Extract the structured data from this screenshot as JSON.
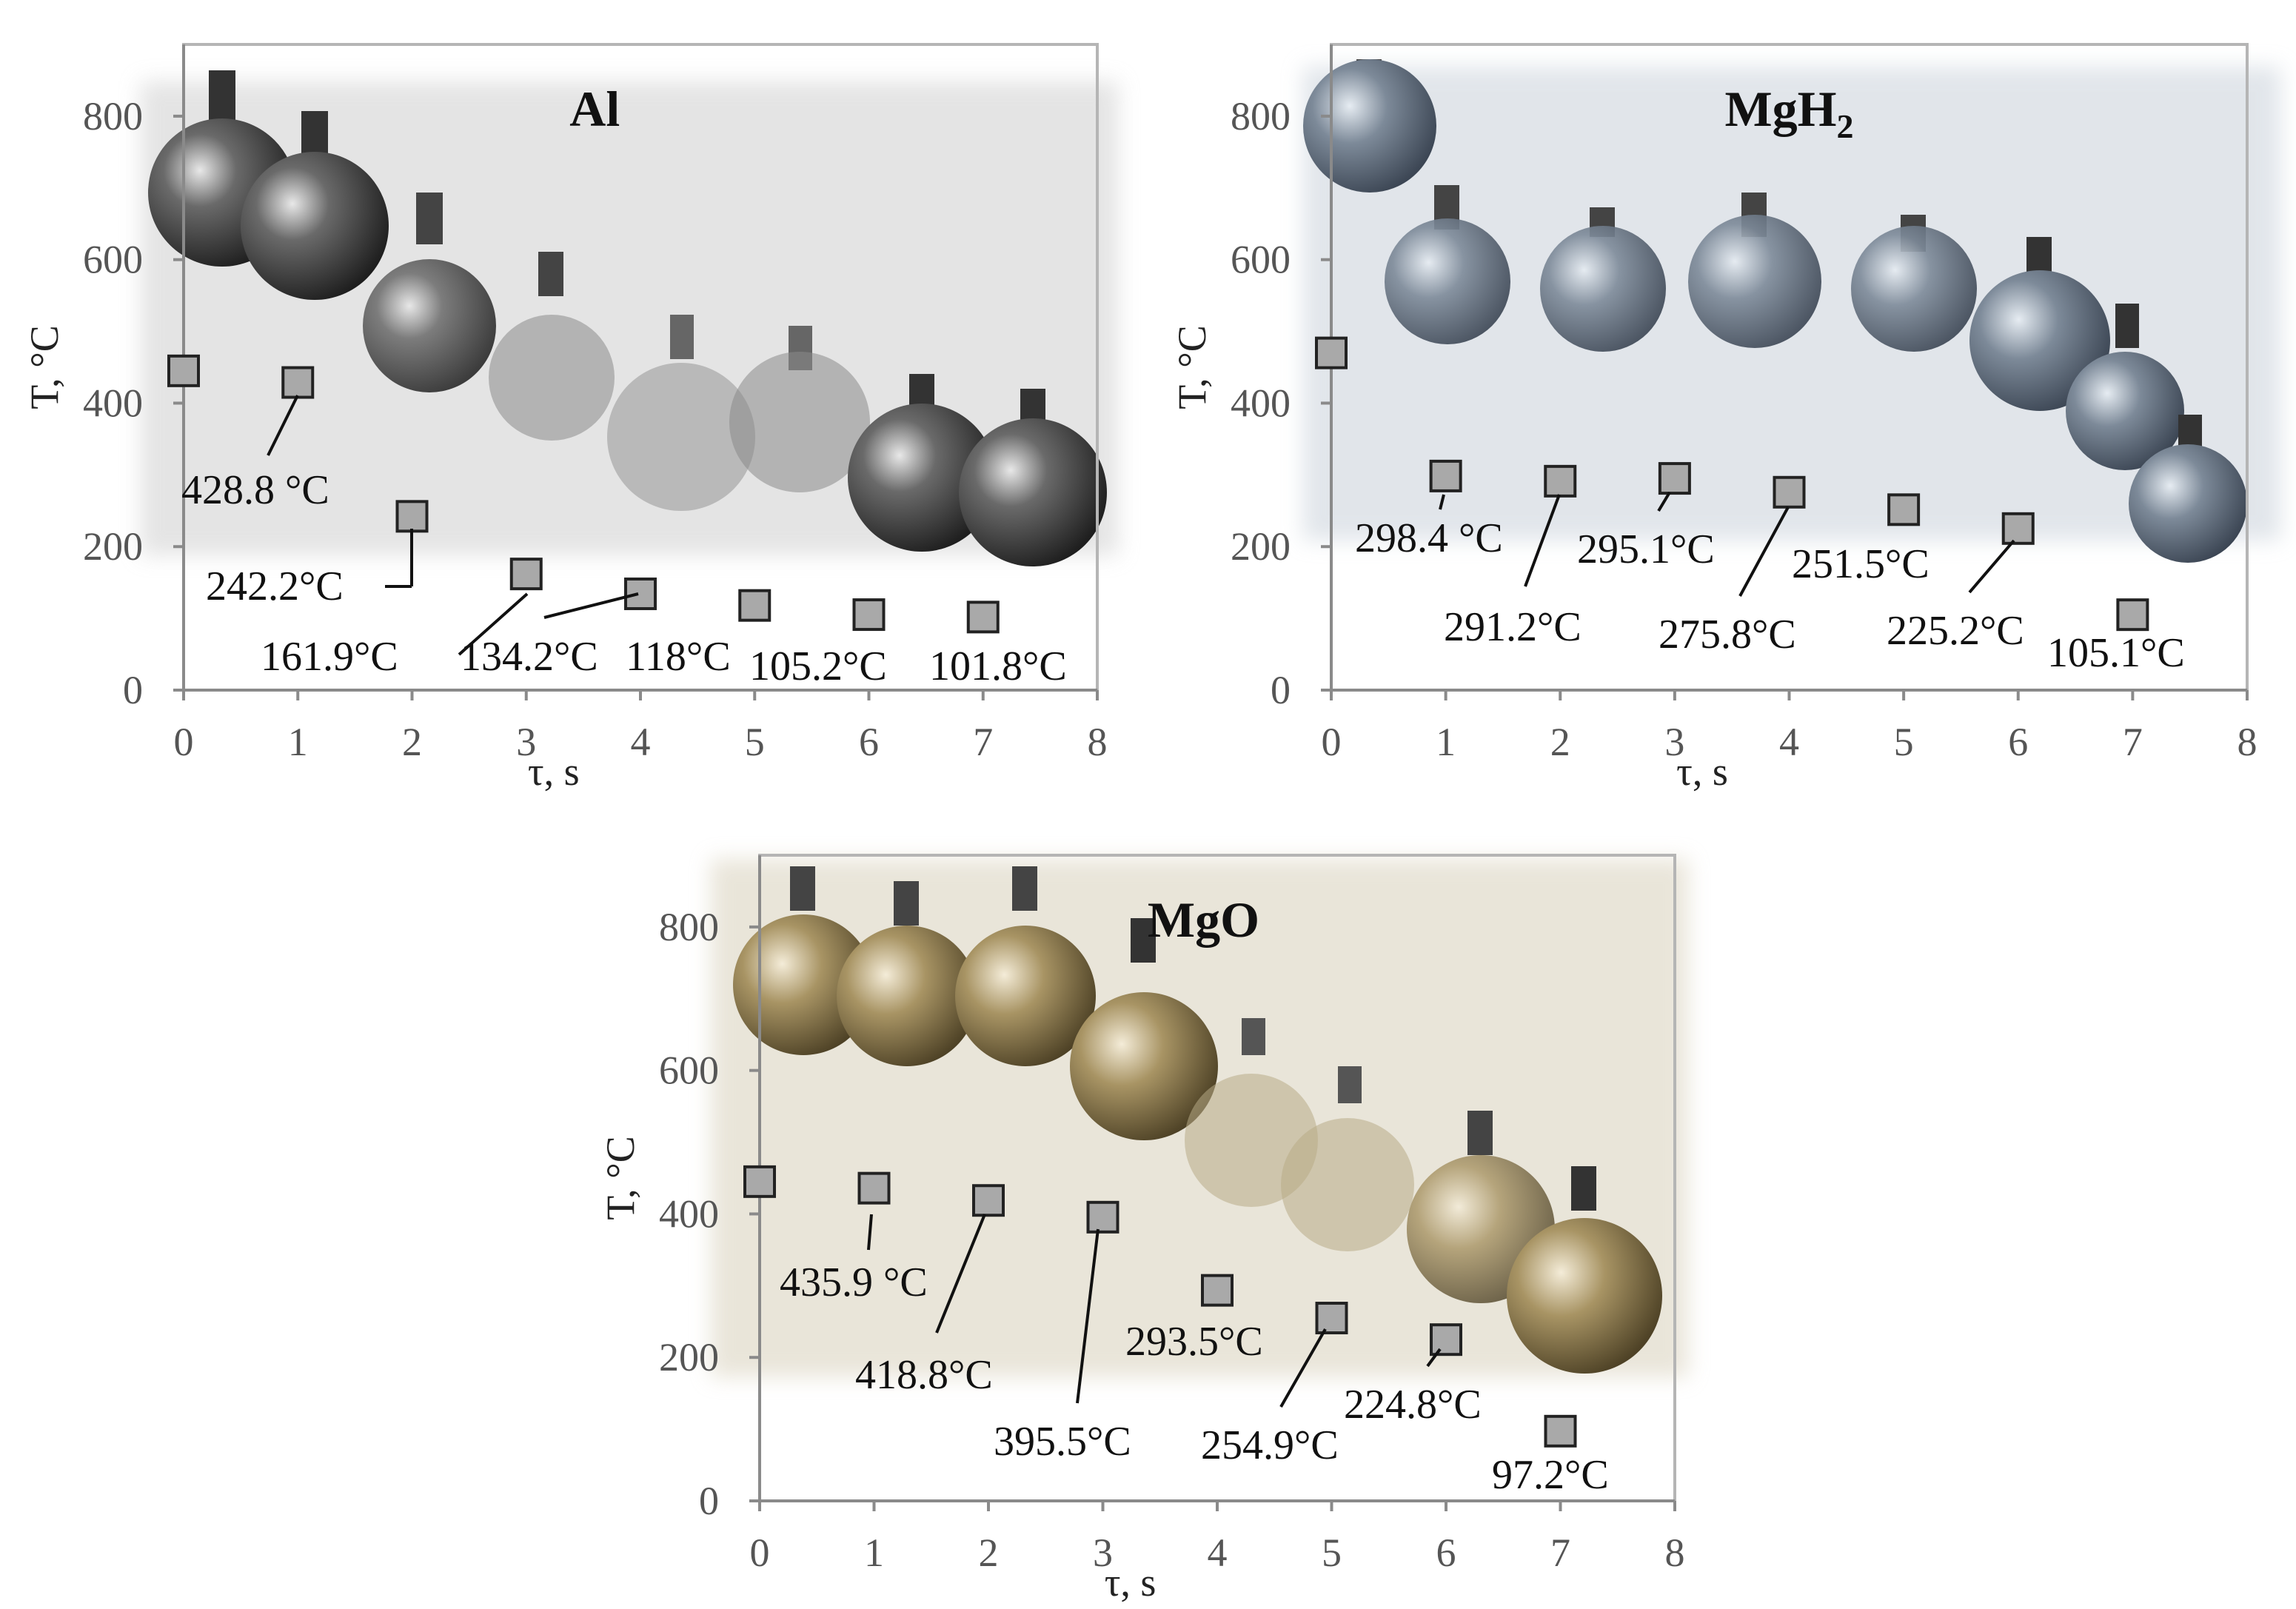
{
  "colors": {
    "marker_fill": "#a9a9a9",
    "marker_stroke": "#222222",
    "Al_sphere": "#3a3a3a",
    "MgH2_sphere": "#6f7c8c",
    "MgO_sphere": "#8a7a4e"
  },
  "chart_data": [
    {
      "type": "scatter",
      "title": "Al",
      "xlabel": "τ, s",
      "ylabel": "T, °C",
      "xlim": [
        0,
        8
      ],
      "ylim": [
        0,
        900
      ],
      "xticks": [
        "0",
        "1",
        "2",
        "3",
        "4",
        "5",
        "6",
        "7",
        "8"
      ],
      "yticks": [
        "0",
        "200",
        "400",
        "600",
        "800"
      ],
      "grid": false,
      "legend": "none",
      "x": [
        0,
        1,
        2,
        3,
        4,
        5,
        6,
        7
      ],
      "y": [
        445,
        428.8,
        242.2,
        161.9,
        134.2,
        118,
        105.2,
        101.8
      ],
      "data_labels": [
        "",
        "428.8 °C",
        "242.2°C",
        "161.9°C",
        "134.2°C",
        "118°C",
        "105.2°C",
        "101.8°C"
      ]
    },
    {
      "type": "scatter",
      "title": "MgH",
      "title_sub": "2",
      "xlabel": "τ, s",
      "ylabel": "T, °C",
      "xlim": [
        0,
        8
      ],
      "ylim": [
        0,
        900
      ],
      "xticks": [
        "0",
        "1",
        "2",
        "3",
        "4",
        "5",
        "6",
        "7",
        "8"
      ],
      "yticks": [
        "0",
        "200",
        "400",
        "600",
        "800"
      ],
      "grid": false,
      "legend": "none",
      "x": [
        0,
        1,
        2,
        3,
        4,
        5,
        6,
        7
      ],
      "y": [
        470,
        298.4,
        291.2,
        295.1,
        275.8,
        251.5,
        225.2,
        105.1
      ],
      "data_labels": [
        "",
        "298.4 °C",
        "291.2°C",
        "295.1°C",
        "275.8°C",
        "251.5°C",
        "225.2°C",
        "105.1°C"
      ]
    },
    {
      "type": "scatter",
      "title": "MgO",
      "xlabel": "τ, s",
      "ylabel": "T, °C",
      "xlim": [
        0,
        8
      ],
      "ylim": [
        0,
        900
      ],
      "xticks": [
        "0",
        "1",
        "2",
        "3",
        "4",
        "5",
        "6",
        "7",
        "8"
      ],
      "yticks": [
        "0",
        "200",
        "400",
        "600",
        "800"
      ],
      "grid": false,
      "legend": "none",
      "x": [
        0,
        1,
        2,
        3,
        4,
        5,
        6,
        7
      ],
      "y": [
        445,
        435.9,
        418.8,
        395.5,
        293.5,
        254.9,
        224.8,
        97.2
      ],
      "data_labels": [
        "",
        "435.9 °C",
        "418.8°C",
        "395.5°C",
        "293.5°C",
        "254.9°C",
        "224.8°C",
        "97.2°C"
      ]
    }
  ]
}
